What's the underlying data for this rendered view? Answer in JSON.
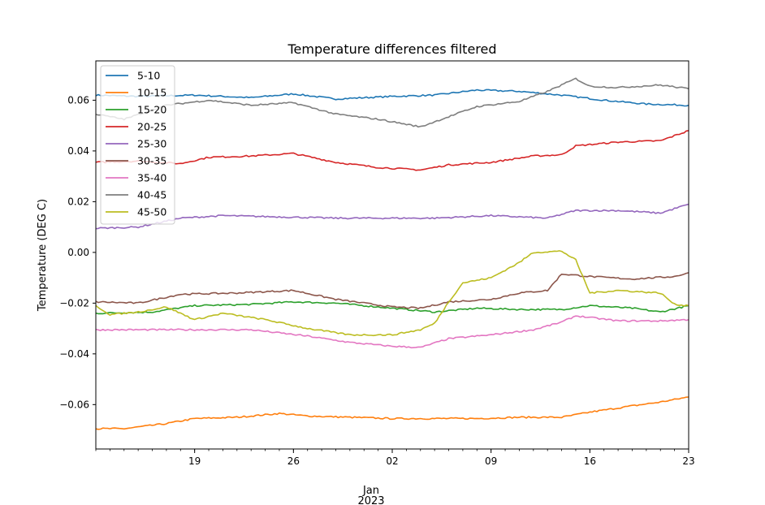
{
  "chart_data": {
    "type": "line",
    "title": "Temperature differences filtered",
    "xlabel": "",
    "ylabel": "Temperature (DEG C)",
    "x_start": "2022-12-13",
    "x_end": "2023-01-23",
    "xlim": [
      "2022-12-12",
      "2023-01-23"
    ],
    "ylim": [
      -0.0775,
      0.0755
    ],
    "x_major_ticks": [
      {
        "date": "2022-12-19",
        "label": "19"
      },
      {
        "date": "2022-12-26",
        "label": "26"
      },
      {
        "date": "2023-01-02",
        "label": "02"
      },
      {
        "date": "2023-01-09",
        "label": "09"
      },
      {
        "date": "2023-01-16",
        "label": "16"
      },
      {
        "date": "2023-01-23",
        "label": "23"
      }
    ],
    "x_secondary_label_line1": "Jan",
    "x_secondary_label_line2": "2023",
    "y_ticks": [
      -0.06,
      -0.04,
      -0.02,
      0.0,
      0.02,
      0.04,
      0.06
    ],
    "y_tick_labels": [
      "−0.06",
      "−0.04",
      "−0.02",
      "0.00",
      "0.02",
      "0.04",
      "0.06"
    ],
    "legend_position": "top-left",
    "series": [
      {
        "name": "5-10",
        "color": "#1f77b4",
        "x": [
          "2022-12-12",
          "2022-12-15",
          "2022-12-19",
          "2022-12-23",
          "2022-12-26",
          "2022-12-29",
          "2023-01-02",
          "2023-01-05",
          "2023-01-08",
          "2023-01-11",
          "2023-01-14",
          "2023-01-17",
          "2023-01-20",
          "2023-01-23"
        ],
        "y": [
          0.062,
          0.0615,
          0.062,
          0.061,
          0.0625,
          0.0605,
          0.0615,
          0.062,
          0.064,
          0.0635,
          0.062,
          0.06,
          0.0585,
          0.058
        ]
      },
      {
        "name": "10-15",
        "color": "#ff7f0e",
        "x": [
          "2022-12-12",
          "2022-12-14",
          "2022-12-17",
          "2022-12-19",
          "2022-12-22",
          "2022-12-25",
          "2022-12-27",
          "2022-12-30",
          "2023-01-02",
          "2023-01-05",
          "2023-01-08",
          "2023-01-11",
          "2023-01-14",
          "2023-01-16",
          "2023-01-19",
          "2023-01-21",
          "2023-01-23"
        ],
        "y": [
          -0.0695,
          -0.0695,
          -0.0675,
          -0.0655,
          -0.065,
          -0.0635,
          -0.0645,
          -0.065,
          -0.0655,
          -0.0655,
          -0.0655,
          -0.065,
          -0.065,
          -0.063,
          -0.0605,
          -0.059,
          -0.057
        ]
      },
      {
        "name": "15-20",
        "color": "#2ca02c",
        "x": [
          "2022-12-12",
          "2022-12-16",
          "2022-12-19",
          "2022-12-23",
          "2022-12-26",
          "2022-12-29",
          "2023-01-02",
          "2023-01-05",
          "2023-01-08",
          "2023-01-11",
          "2023-01-14",
          "2023-01-16",
          "2023-01-19",
          "2023-01-21",
          "2023-01-23"
        ],
        "y": [
          -0.024,
          -0.0235,
          -0.021,
          -0.0205,
          -0.0195,
          -0.02,
          -0.022,
          -0.0235,
          -0.022,
          -0.0225,
          -0.0225,
          -0.021,
          -0.022,
          -0.0235,
          -0.021
        ]
      },
      {
        "name": "20-25",
        "color": "#d62728",
        "x": [
          "2022-12-12",
          "2022-12-15",
          "2022-12-18",
          "2022-12-20",
          "2022-12-23",
          "2022-12-26",
          "2022-12-29",
          "2023-01-01",
          "2023-01-04",
          "2023-01-06",
          "2023-01-09",
          "2023-01-12",
          "2023-01-14",
          "2023-01-15",
          "2023-01-18",
          "2023-01-21",
          "2023-01-23"
        ],
        "y": [
          0.0355,
          0.036,
          0.035,
          0.0375,
          0.038,
          0.039,
          0.0355,
          0.0335,
          0.0325,
          0.0345,
          0.0355,
          0.038,
          0.0385,
          0.042,
          0.0435,
          0.044,
          0.048
        ]
      },
      {
        "name": "25-30",
        "color": "#9467bd",
        "x": [
          "2022-12-12",
          "2022-12-15",
          "2022-12-18",
          "2022-12-21",
          "2022-12-25",
          "2022-12-29",
          "2023-01-02",
          "2023-01-05",
          "2023-01-09",
          "2023-01-13",
          "2023-01-15",
          "2023-01-18",
          "2023-01-21",
          "2023-01-23"
        ],
        "y": [
          0.0095,
          0.01,
          0.0135,
          0.0145,
          0.014,
          0.0135,
          0.0135,
          0.0135,
          0.0145,
          0.0135,
          0.0165,
          0.0165,
          0.0155,
          0.019
        ]
      },
      {
        "name": "30-35",
        "color": "#8c564b",
        "x": [
          "2022-12-12",
          "2022-12-15",
          "2022-12-18",
          "2022-12-22",
          "2022-12-26",
          "2022-12-29",
          "2023-01-02",
          "2023-01-04",
          "2023-01-06",
          "2023-01-09",
          "2023-01-11",
          "2023-01-13",
          "2023-01-14",
          "2023-01-16",
          "2023-01-19",
          "2023-01-22",
          "2023-01-23"
        ],
        "y": [
          -0.0195,
          -0.02,
          -0.0165,
          -0.016,
          -0.015,
          -0.0185,
          -0.0215,
          -0.022,
          -0.0195,
          -0.0185,
          -0.016,
          -0.015,
          -0.0085,
          -0.0095,
          -0.0105,
          -0.0095,
          -0.008
        ]
      },
      {
        "name": "35-40",
        "color": "#e377c2",
        "x": [
          "2022-12-12",
          "2022-12-16",
          "2022-12-19",
          "2022-12-23",
          "2022-12-27",
          "2022-12-30",
          "2023-01-02",
          "2023-01-04",
          "2023-01-06",
          "2023-01-09",
          "2023-01-12",
          "2023-01-14",
          "2023-01-15",
          "2023-01-18",
          "2023-01-21",
          "2023-01-23"
        ],
        "y": [
          -0.0305,
          -0.0305,
          -0.0305,
          -0.0305,
          -0.033,
          -0.0355,
          -0.037,
          -0.0375,
          -0.034,
          -0.0325,
          -0.0305,
          -0.0275,
          -0.025,
          -0.027,
          -0.027,
          -0.0265
        ]
      },
      {
        "name": "40-45",
        "color": "#7f7f7f",
        "x": [
          "2022-12-12",
          "2022-12-14",
          "2022-12-17",
          "2022-12-20",
          "2022-12-23",
          "2022-12-26",
          "2022-12-29",
          "2023-01-01",
          "2023-01-04",
          "2023-01-06",
          "2023-01-08",
          "2023-01-11",
          "2023-01-13",
          "2023-01-15",
          "2023-01-16",
          "2023-01-18",
          "2023-01-21",
          "2023-01-23"
        ],
        "y": [
          0.0545,
          0.0525,
          0.058,
          0.06,
          0.058,
          0.059,
          0.0545,
          0.0525,
          0.0495,
          0.0535,
          0.0575,
          0.0595,
          0.0635,
          0.0685,
          0.0655,
          0.065,
          0.066,
          0.0645
        ]
      },
      {
        "name": "45-50",
        "color": "#bcbd22",
        "x": [
          "2022-12-12",
          "2022-12-13",
          "2022-12-15",
          "2022-12-17",
          "2022-12-19",
          "2022-12-21",
          "2022-12-24",
          "2022-12-27",
          "2022-12-30",
          "2023-01-02",
          "2023-01-04",
          "2023-01-05",
          "2023-01-06",
          "2023-01-07",
          "2023-01-09",
          "2023-01-11",
          "2023-01-12",
          "2023-01-14",
          "2023-01-15",
          "2023-01-16",
          "2023-01-18",
          "2023-01-21",
          "2023-01-22",
          "2023-01-23"
        ],
        "y": [
          -0.021,
          -0.0245,
          -0.0235,
          -0.0215,
          -0.0265,
          -0.024,
          -0.0265,
          -0.03,
          -0.0325,
          -0.0325,
          -0.0305,
          -0.028,
          -0.0195,
          -0.012,
          -0.01,
          -0.004,
          0.0,
          0.0005,
          -0.003,
          -0.016,
          -0.015,
          -0.016,
          -0.0205,
          -0.021
        ]
      }
    ]
  }
}
